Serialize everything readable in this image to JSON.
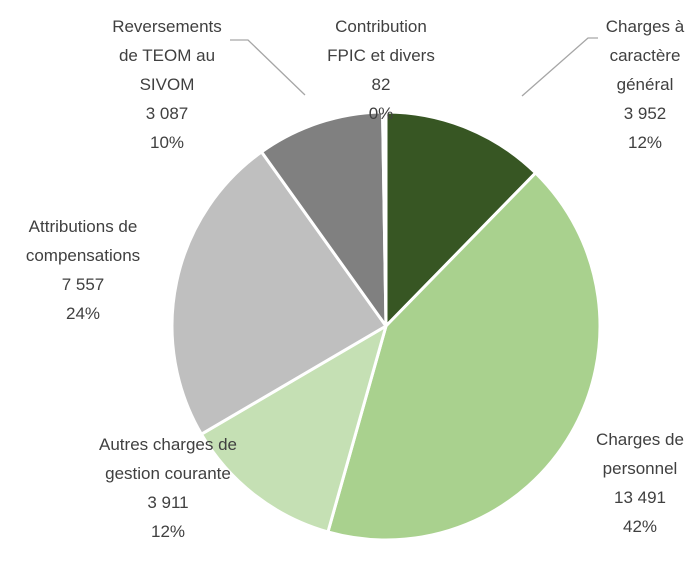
{
  "chart_data": {
    "type": "pie",
    "categories": [
      "Charges à caractère général",
      "Charges de personnel",
      "Autres charges de gestion courante",
      "Attributions de compensations",
      "Reversements de TEOM au SIVOM",
      "Contribution FPIC et divers"
    ],
    "values": [
      3952,
      13491,
      3911,
      7557,
      3087,
      82
    ],
    "value_labels": [
      "3 952",
      "13 491",
      "3 911",
      "7 557",
      "3 087",
      "82"
    ],
    "percents": [
      12,
      42,
      12,
      24,
      10,
      0
    ],
    "percent_labels": [
      "12%",
      "42%",
      "12%",
      "24%",
      "10%",
      "0%"
    ],
    "colors": [
      "#375623",
      "#a9d18e",
      "#c5e0b4",
      "#bfbfbf",
      "#808080",
      "#f2f2f2"
    ]
  }
}
